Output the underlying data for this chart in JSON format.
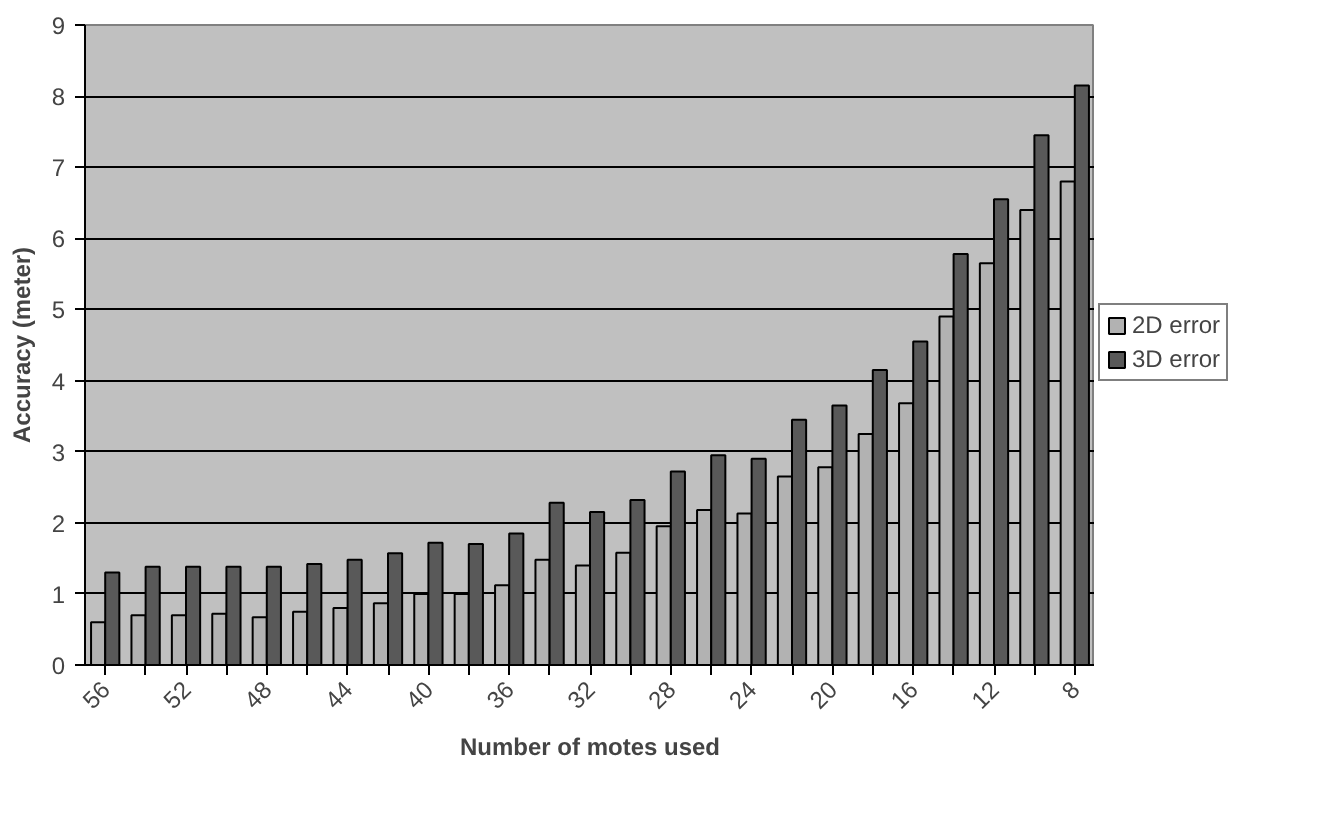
{
  "chart_data": {
    "type": "bar",
    "xlabel": "Number of motes used",
    "ylabel": "Accuracy (meter)",
    "categories": [
      "56",
      null,
      "52",
      null,
      "48",
      null,
      "44",
      null,
      "40",
      null,
      "36",
      null,
      "32",
      null,
      "28",
      null,
      "24",
      null,
      "20",
      null,
      "16",
      null,
      "12",
      null,
      "8"
    ],
    "series": [
      {
        "name": "2D error",
        "color": "#b2b2b2",
        "values": [
          0.6,
          0.7,
          0.7,
          0.72,
          0.67,
          0.75,
          0.8,
          0.87,
          1.0,
          1.0,
          1.12,
          1.48,
          1.4,
          1.58,
          1.95,
          2.18,
          2.13,
          2.65,
          2.78,
          3.25,
          3.68,
          4.9,
          5.65,
          6.4,
          6.8
        ]
      },
      {
        "name": "3D error",
        "color": "#595959",
        "values": [
          1.3,
          1.38,
          1.38,
          1.38,
          1.38,
          1.42,
          1.48,
          1.57,
          1.72,
          1.7,
          1.85,
          2.28,
          2.15,
          2.32,
          2.72,
          2.95,
          2.9,
          3.45,
          3.65,
          4.15,
          4.55,
          5.78,
          6.55,
          7.45,
          8.15
        ]
      }
    ],
    "ylim": [
      0,
      9
    ],
    "yticks": [
      0,
      1,
      2,
      3,
      4,
      5,
      6,
      7,
      8,
      9
    ],
    "grid": "y",
    "legend": "right"
  }
}
